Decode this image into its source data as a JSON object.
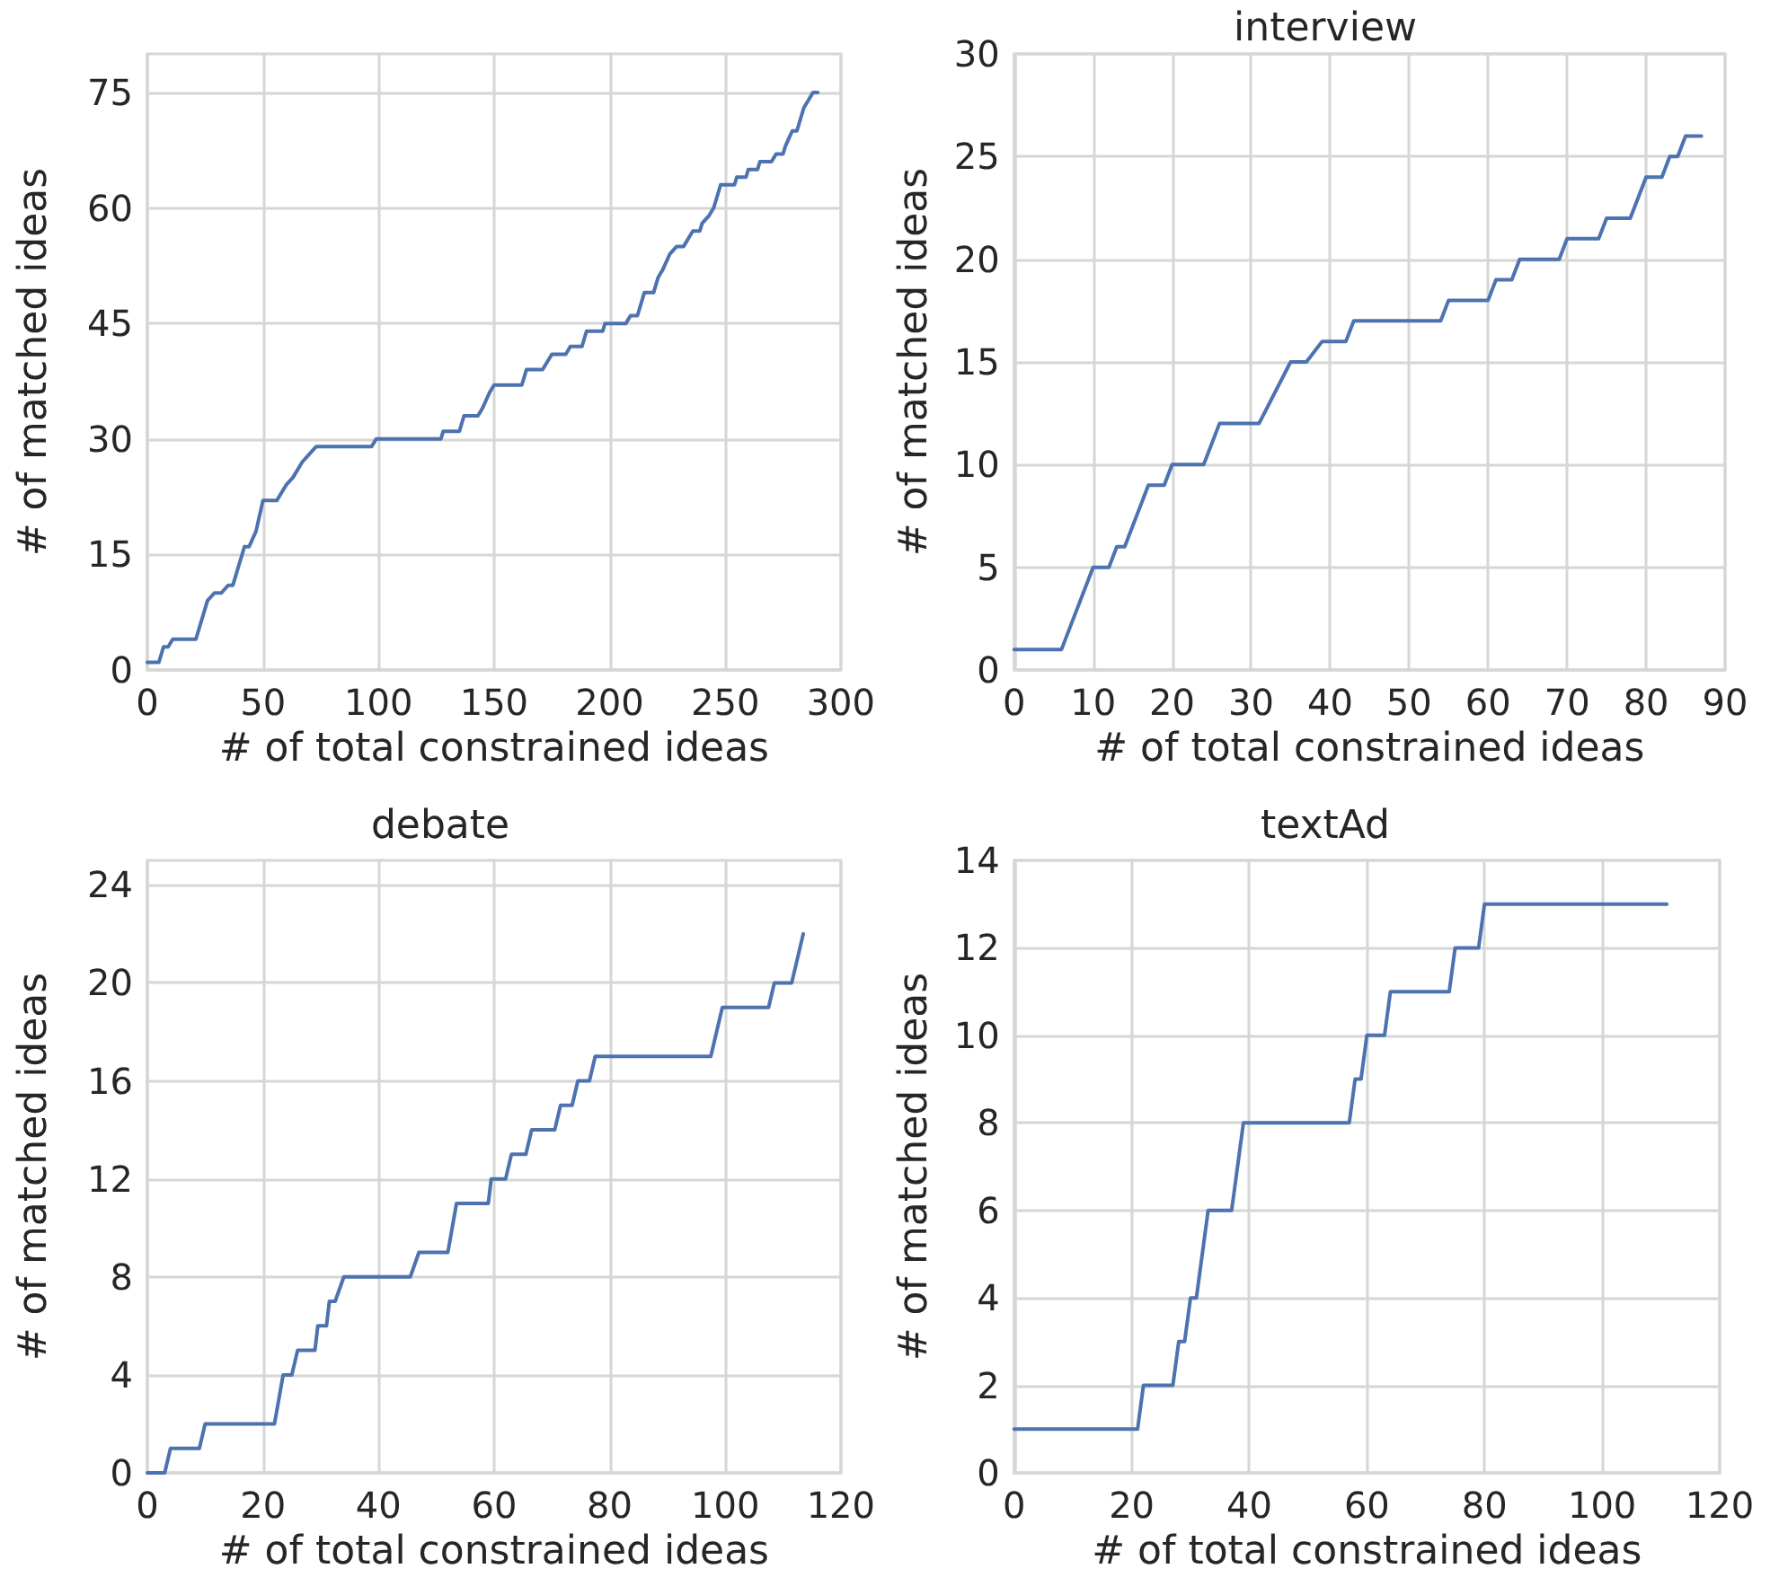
{
  "chart_data": [
    {
      "type": "line",
      "xlabel": "# of total constrained ideas",
      "ylabel": "# of matched ideas",
      "xlim": [
        0,
        300
      ],
      "ylim": [
        0,
        80
      ],
      "xticks": [
        0,
        50,
        100,
        150,
        200,
        250,
        300
      ],
      "yticks": [
        0,
        15,
        30,
        45,
        60,
        75
      ],
      "grid": true,
      "series": [
        {
          "color": "#4c72b0",
          "x": [
            0,
            5,
            7,
            9,
            11,
            21,
            26,
            29,
            32,
            35,
            37,
            42,
            44,
            47,
            50,
            56,
            58,
            60,
            63,
            67,
            70,
            73,
            97,
            99,
            127,
            128,
            135,
            137,
            143,
            145,
            148,
            150,
            162,
            164,
            171,
            173,
            175,
            181,
            183,
            188,
            190,
            197,
            198,
            207,
            209,
            212,
            215,
            219,
            221,
            223,
            226,
            229,
            232,
            234,
            236,
            239,
            240,
            243,
            245,
            248,
            254,
            255,
            259,
            260,
            264,
            265,
            270,
            272,
            275,
            276,
            279,
            281,
            284,
            286,
            288,
            290
          ],
          "values": [
            1,
            1,
            3,
            3,
            4,
            4,
            9,
            10,
            10,
            11,
            11,
            16,
            16,
            18,
            22,
            22,
            23,
            24,
            25,
            27,
            28,
            29,
            29,
            30,
            30,
            31,
            31,
            33,
            33,
            34,
            36,
            37,
            37,
            39,
            39,
            40,
            41,
            41,
            42,
            42,
            44,
            44,
            45,
            45,
            46,
            46,
            49,
            49,
            51,
            52,
            54,
            55,
            55,
            56,
            57,
            57,
            58,
            59,
            60,
            63,
            63,
            64,
            64,
            65,
            65,
            66,
            66,
            67,
            67,
            68,
            70,
            70,
            73,
            74,
            75,
            75
          ]
        }
      ]
    },
    {
      "type": "line",
      "title": "interview",
      "xlabel": "# of total constrained ideas",
      "ylabel": "# of matched ideas",
      "xlim": [
        0,
        90
      ],
      "ylim": [
        0,
        30
      ],
      "xticks": [
        0,
        10,
        20,
        30,
        40,
        50,
        60,
        70,
        80,
        90
      ],
      "yticks": [
        0,
        5,
        10,
        15,
        20,
        25,
        30
      ],
      "grid": true,
      "series": [
        {
          "color": "#4c72b0",
          "x": [
            0,
            6,
            10,
            12,
            13,
            14,
            17,
            19,
            20,
            24,
            26,
            31,
            35,
            37,
            39,
            42,
            43,
            54,
            55,
            60,
            61,
            63,
            64,
            69,
            70,
            74,
            75,
            78,
            80,
            82,
            83,
            84,
            85,
            87
          ],
          "values": [
            1,
            1,
            5,
            5,
            6,
            6,
            9,
            9,
            10,
            10,
            12,
            12,
            15,
            15,
            16,
            16,
            17,
            17,
            18,
            18,
            19,
            19,
            20,
            20,
            21,
            21,
            22,
            22,
            24,
            24,
            25,
            25,
            26,
            26
          ]
        }
      ]
    },
    {
      "type": "line",
      "title": "debate",
      "xlabel": "# of total constrained ideas",
      "ylabel": "# of matched ideas",
      "xlim": [
        0,
        120
      ],
      "ylim": [
        0,
        25
      ],
      "xticks": [
        0,
        20,
        40,
        60,
        80,
        100,
        120
      ],
      "yticks": [
        0,
        4,
        8,
        12,
        16,
        20,
        24
      ],
      "grid": true,
      "series": [
        {
          "color": "#4c72b0",
          "x": [
            0,
            3,
            4,
            9,
            10,
            22,
            23.5,
            25,
            26,
            29,
            29.5,
            31,
            31.5,
            32.5,
            34,
            45.5,
            47,
            52,
            53.5,
            59,
            59.5,
            62,
            63,
            65.5,
            66.5,
            70.5,
            71.5,
            73.5,
            74.5,
            76.5,
            77.5,
            97.5,
            99.5,
            107.5,
            108.5,
            111.5,
            113.5
          ],
          "values": [
            0,
            0,
            1,
            1,
            2,
            2,
            4,
            4,
            5,
            5,
            6,
            6,
            7,
            7,
            8,
            8,
            9,
            9,
            11,
            11,
            12,
            12,
            13,
            13,
            14,
            14,
            15,
            15,
            16,
            16,
            17,
            17,
            19,
            19,
            20,
            20,
            22
          ]
        }
      ]
    },
    {
      "type": "line",
      "title": "textAd",
      "xlabel": "# of total constrained ideas",
      "ylabel": "# of matched ideas",
      "xlim": [
        0,
        120
      ],
      "ylim": [
        0,
        14
      ],
      "xticks": [
        0,
        20,
        40,
        60,
        80,
        100,
        120
      ],
      "yticks": [
        0,
        2,
        4,
        6,
        8,
        10,
        12,
        14
      ],
      "grid": true,
      "series": [
        {
          "color": "#4c72b0",
          "x": [
            0,
            21,
            22,
            27,
            28,
            29,
            30,
            31,
            33,
            37,
            39,
            57,
            58,
            59,
            60,
            63,
            64,
            74,
            75,
            79,
            80,
            111
          ],
          "values": [
            1,
            1,
            2,
            2,
            3,
            3,
            4,
            4,
            6,
            6,
            8,
            8,
            9,
            9,
            10,
            10,
            11,
            11,
            12,
            12,
            13,
            13
          ]
        }
      ]
    }
  ]
}
